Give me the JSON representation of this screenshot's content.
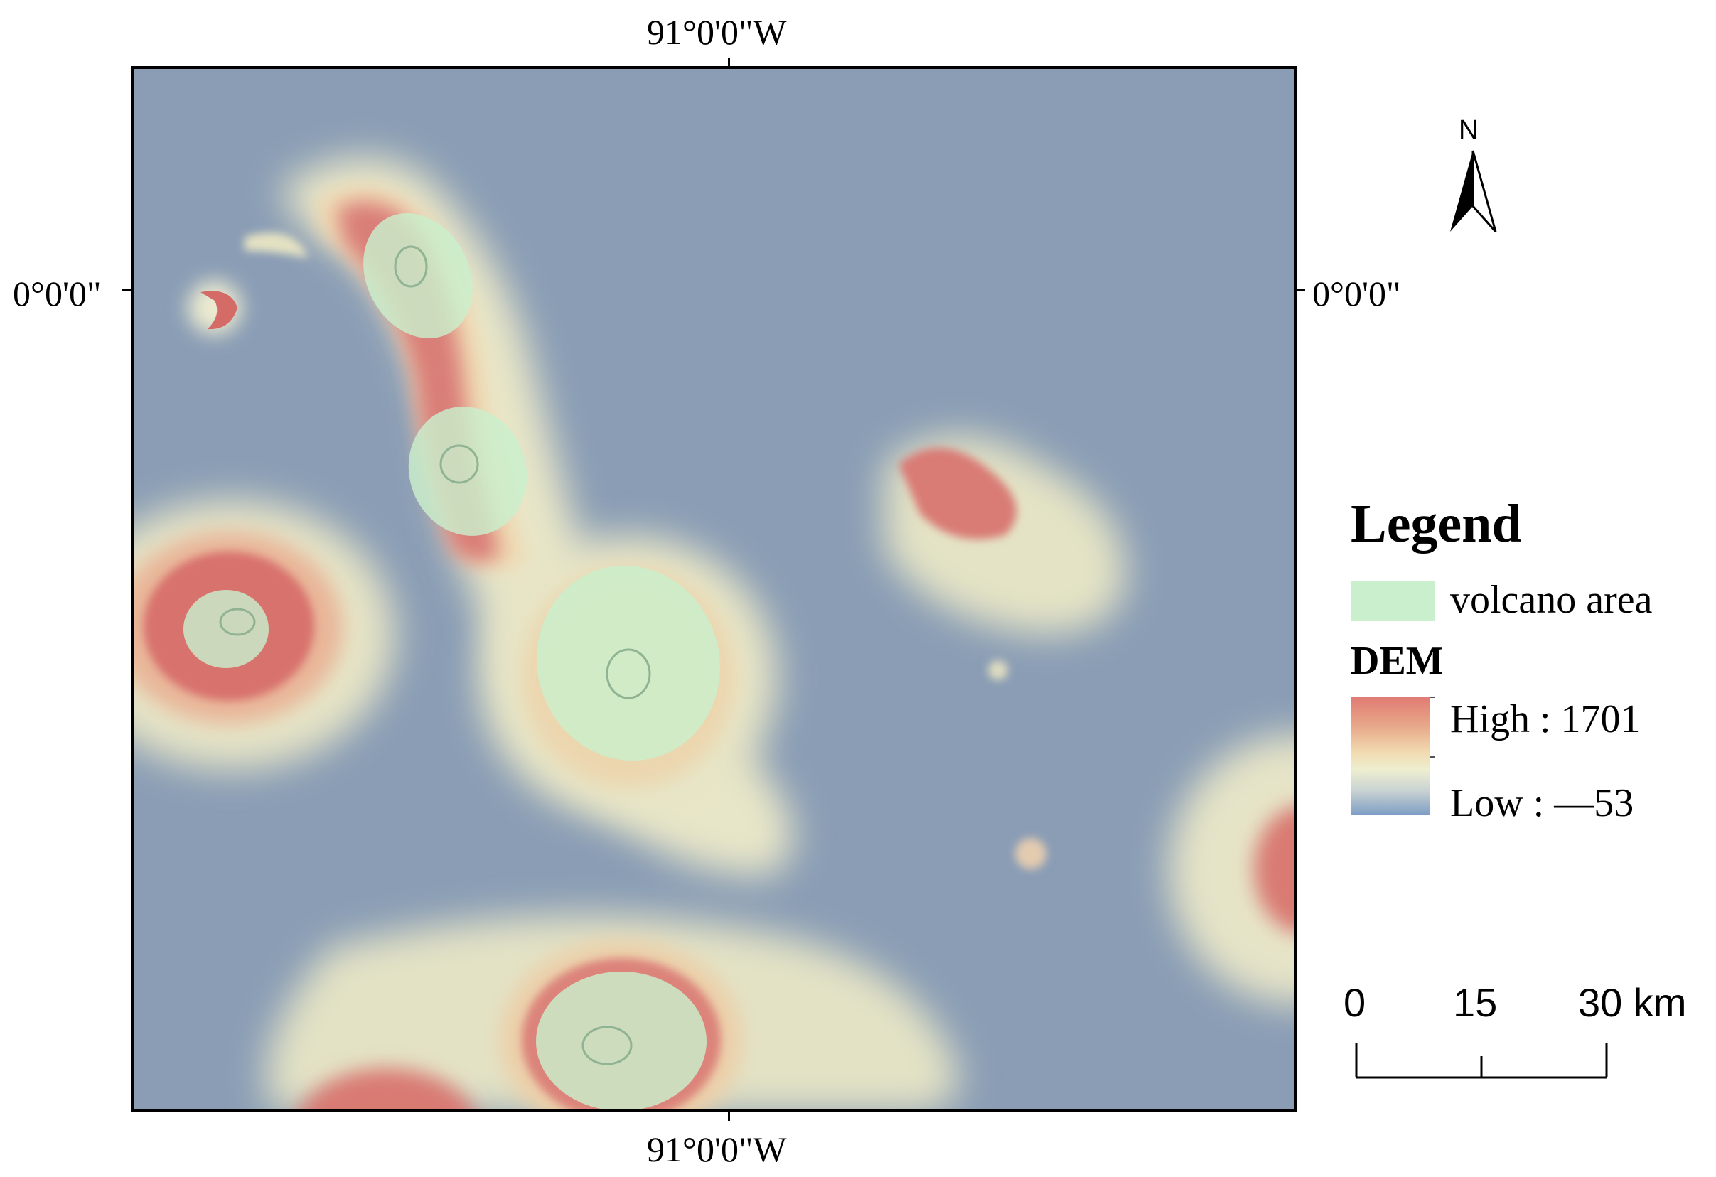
{
  "graticule": {
    "lon_top": "91°0'0\"W",
    "lon_bottom": "91°0'0\"W",
    "lat_left": "0°0'0\"",
    "lat_right": "0°0'0\""
  },
  "legend": {
    "title": "Legend",
    "volcano_label": "volcano area",
    "volcano_color": "#c9efcc",
    "dem_title": "DEM",
    "dem_high": "High : 1701",
    "dem_low": "Low : —53",
    "ramp_colors": [
      "#e07a73",
      "#f1dcb2",
      "#eeeed0",
      "#7f9ec5"
    ]
  },
  "north_arrow": {
    "label": "N"
  },
  "scale_bar": {
    "labels": [
      "0",
      "15",
      "30 km"
    ]
  },
  "colors": {
    "sea": "#8a9db5",
    "frame": "#000000"
  }
}
